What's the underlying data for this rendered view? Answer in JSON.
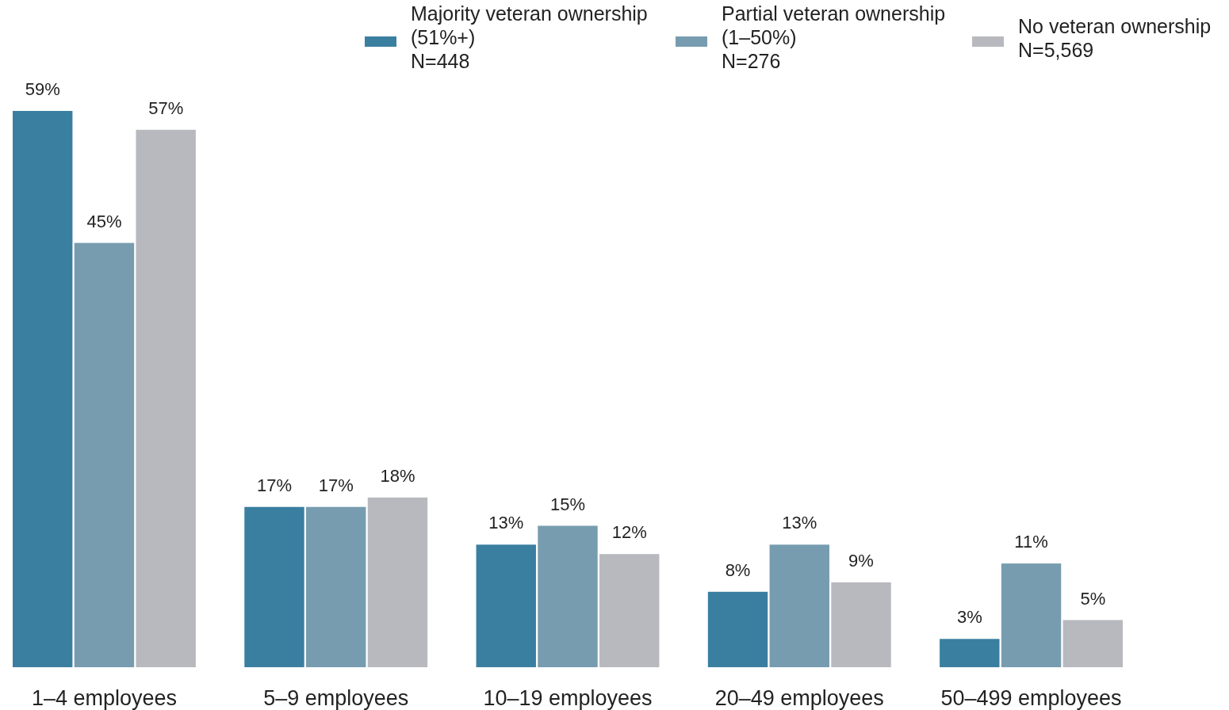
{
  "chart_data": {
    "type": "bar",
    "categories": [
      "1–4 employees",
      "5–9 employees",
      "10–19 employees",
      "20–49 employees",
      "50–499 employees"
    ],
    "series": [
      {
        "name": "Majority veteran ownership\n(51%+)\nN=448",
        "color": "#3a7fa0",
        "values": [
          59,
          17,
          13,
          8,
          3
        ],
        "value_labels": [
          "59%",
          "17%",
          "13%",
          "8%",
          "3%"
        ]
      },
      {
        "name": "Partial veteran ownership\n(1–50%)\nN=276",
        "color": "#779cb0",
        "values": [
          45,
          17,
          15,
          13,
          11
        ],
        "value_labels": [
          "45%",
          "17%",
          "15%",
          "13%",
          "11%"
        ]
      },
      {
        "name": "No veteran ownership\nN=5,569",
        "color": "#b8b9be",
        "values": [
          57,
          18,
          12,
          9,
          5
        ],
        "value_labels": [
          "57%",
          "18%",
          "12%",
          "9%",
          "5%"
        ]
      }
    ],
    "grid": false,
    "legend": "top right"
  }
}
